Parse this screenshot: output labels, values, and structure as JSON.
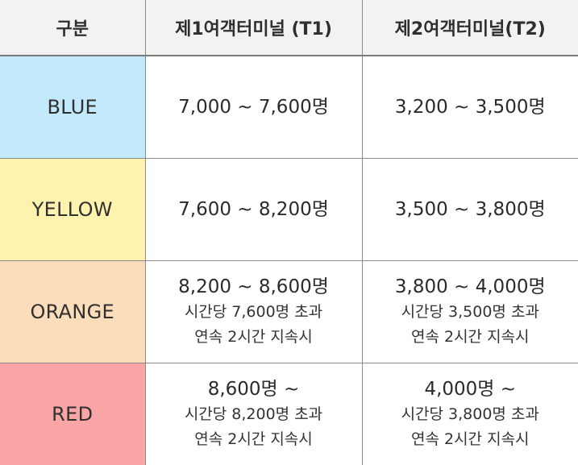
{
  "header": {
    "category": "구분",
    "t1": "제1여객터미널 (T1)",
    "t2": "제2여객터미널(T2)"
  },
  "rows": [
    {
      "level": "BLUE",
      "color": "#c3e9fd",
      "t1": {
        "range": "7,000 ~ 7,600명"
      },
      "t2": {
        "range": "3,200 ~ 3,500명"
      }
    },
    {
      "level": "YELLOW",
      "color": "#fdf2ae",
      "t1": {
        "range": "7,600 ~ 8,200명"
      },
      "t2": {
        "range": "3,500 ~ 3,800명"
      }
    },
    {
      "level": "ORANGE",
      "color": "#fbdcbb",
      "t1": {
        "range": "8,200 ~ 8,600명",
        "condition1": "시간당 7,600명 초과",
        "condition2": "연속 2시간 지속시"
      },
      "t2": {
        "range": "3,800 ~ 4,000명",
        "condition1": "시간당 3,500명 초과",
        "condition2": "연속 2시간 지속시"
      }
    },
    {
      "level": "RED",
      "color": "#f9a5a5",
      "t1": {
        "range": "8,600명 ~",
        "condition1": "시간당 8,200명 초과",
        "condition2": "연속 2시간 지속시"
      },
      "t2": {
        "range": "4,000명 ~",
        "condition1": "시간당 3,800명 초과",
        "condition2": "연속 2시간 지속시"
      }
    }
  ]
}
